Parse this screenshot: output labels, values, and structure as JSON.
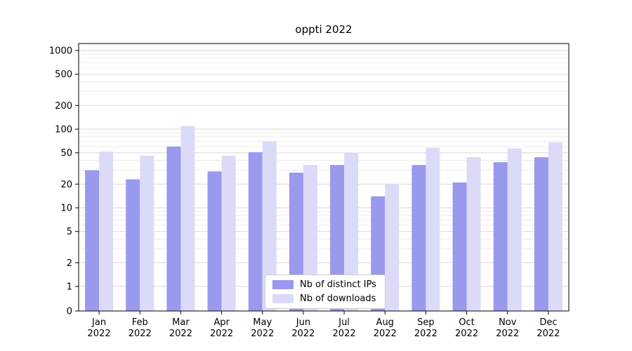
{
  "chart_data": {
    "type": "bar",
    "title": "oppti 2022",
    "categories": [
      "Jan 2022",
      "Feb 2022",
      "Mar 2022",
      "Apr 2022",
      "May 2022",
      "Jun 2022",
      "Jul 2022",
      "Aug 2022",
      "Sep 2022",
      "Oct 2022",
      "Nov 2022",
      "Dec 2022"
    ],
    "series": [
      {
        "name": "Nb of distinct IPs",
        "color": "#9999ee",
        "values": [
          30,
          23,
          60,
          29,
          51,
          28,
          35,
          14,
          35,
          21,
          38,
          44
        ]
      },
      {
        "name": "Nb of downloads",
        "color": "#dbdbf8",
        "values": [
          52,
          46,
          110,
          46,
          70,
          35,
          50,
          20,
          58,
          44,
          57,
          68
        ]
      }
    ],
    "xlabel": "",
    "ylabel": "",
    "yscale": "symlog",
    "yticks": [
      0,
      1,
      2,
      5,
      10,
      20,
      50,
      100,
      200,
      500,
      1000
    ],
    "ylim": [
      0,
      1200
    ],
    "grid": true,
    "legend_position": "lower center"
  },
  "colors": {
    "major_grid": "#d9d9d9",
    "minor_grid": "#ececec",
    "axis": "#000000",
    "text": "#000000"
  }
}
